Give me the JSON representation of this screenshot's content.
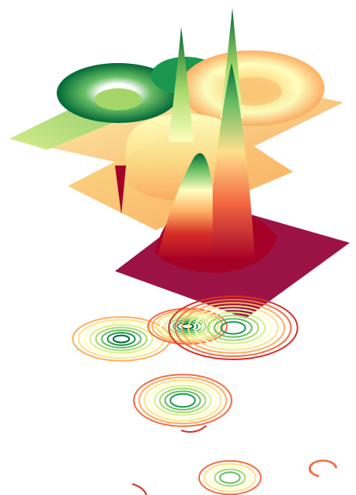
{
  "figure": {
    "background": "#ffffff",
    "colormap": "RdYlGn",
    "colormap_stops": [
      "#a50026",
      "#d73027",
      "#f46d43",
      "#fdae61",
      "#fee08b",
      "#ffffbf",
      "#d9ef8b",
      "#a6d96a",
      "#66bd63",
      "#1a9850",
      "#006837"
    ]
  },
  "chart_data": [
    {
      "type": "surface",
      "layer": "top",
      "title": "",
      "xlabel": "",
      "ylabel": "",
      "zlabel": "",
      "axes_visible": false,
      "grid": false,
      "base_level": 0.6,
      "features": [
        {
          "kind": "ring",
          "shape": "toroidal ridge",
          "value": 0.95
        },
        {
          "kind": "ring",
          "shape": "toroidal ridge",
          "value": 0.45
        },
        {
          "kind": "spike",
          "shape": "narrow peak",
          "value": 1.0
        }
      ]
    },
    {
      "type": "surface",
      "layer": "middle",
      "title": "",
      "xlabel": "",
      "ylabel": "",
      "zlabel": "",
      "axes_visible": false,
      "grid": false,
      "base_level": 0.33,
      "features": [
        {
          "kind": "plateau",
          "shape": "raised disk",
          "value": 0.55
        },
        {
          "kind": "spike",
          "shape": "narrow peak",
          "value": 1.0
        },
        {
          "kind": "well",
          "shape": "narrow pit",
          "value": 0.05
        }
      ]
    },
    {
      "type": "surface",
      "layer": "bottom",
      "title": "",
      "xlabel": "",
      "ylabel": "",
      "zlabel": "",
      "axes_visible": false,
      "grid": false,
      "base_level": 0.0,
      "features": [
        {
          "kind": "peak",
          "shape": "tall gaussian",
          "value": 1.0
        },
        {
          "kind": "spike",
          "shape": "narrow peak",
          "value": 0.75
        }
      ]
    },
    {
      "type": "contour",
      "title": "",
      "xlabel": "",
      "ylabel": "",
      "axes_visible": false,
      "grid": false,
      "clusters": [
        {
          "name": "",
          "levels": [
            0.25,
            0.35,
            0.45,
            0.55,
            0.65,
            0.75,
            0.85,
            0.95
          ]
        },
        {
          "name": "",
          "levels": [
            0.15,
            0.25,
            0.35,
            0.45,
            0.55,
            0.65,
            0.75,
            0.85,
            0.95
          ]
        },
        {
          "name": "",
          "levels": [
            0.1,
            0.2,
            0.3,
            0.4,
            0.5,
            0.6,
            0.7,
            0.8,
            0.9
          ]
        },
        {
          "name": "",
          "levels": [
            0.15,
            0.25,
            0.35,
            0.45,
            0.55,
            0.65,
            0.75,
            0.85
          ]
        },
        {
          "name": "",
          "levels": [
            0.2,
            0.35,
            0.5,
            0.65,
            0.8
          ]
        },
        {
          "name": "",
          "levels": [
            0.15,
            0.2
          ]
        }
      ]
    }
  ]
}
